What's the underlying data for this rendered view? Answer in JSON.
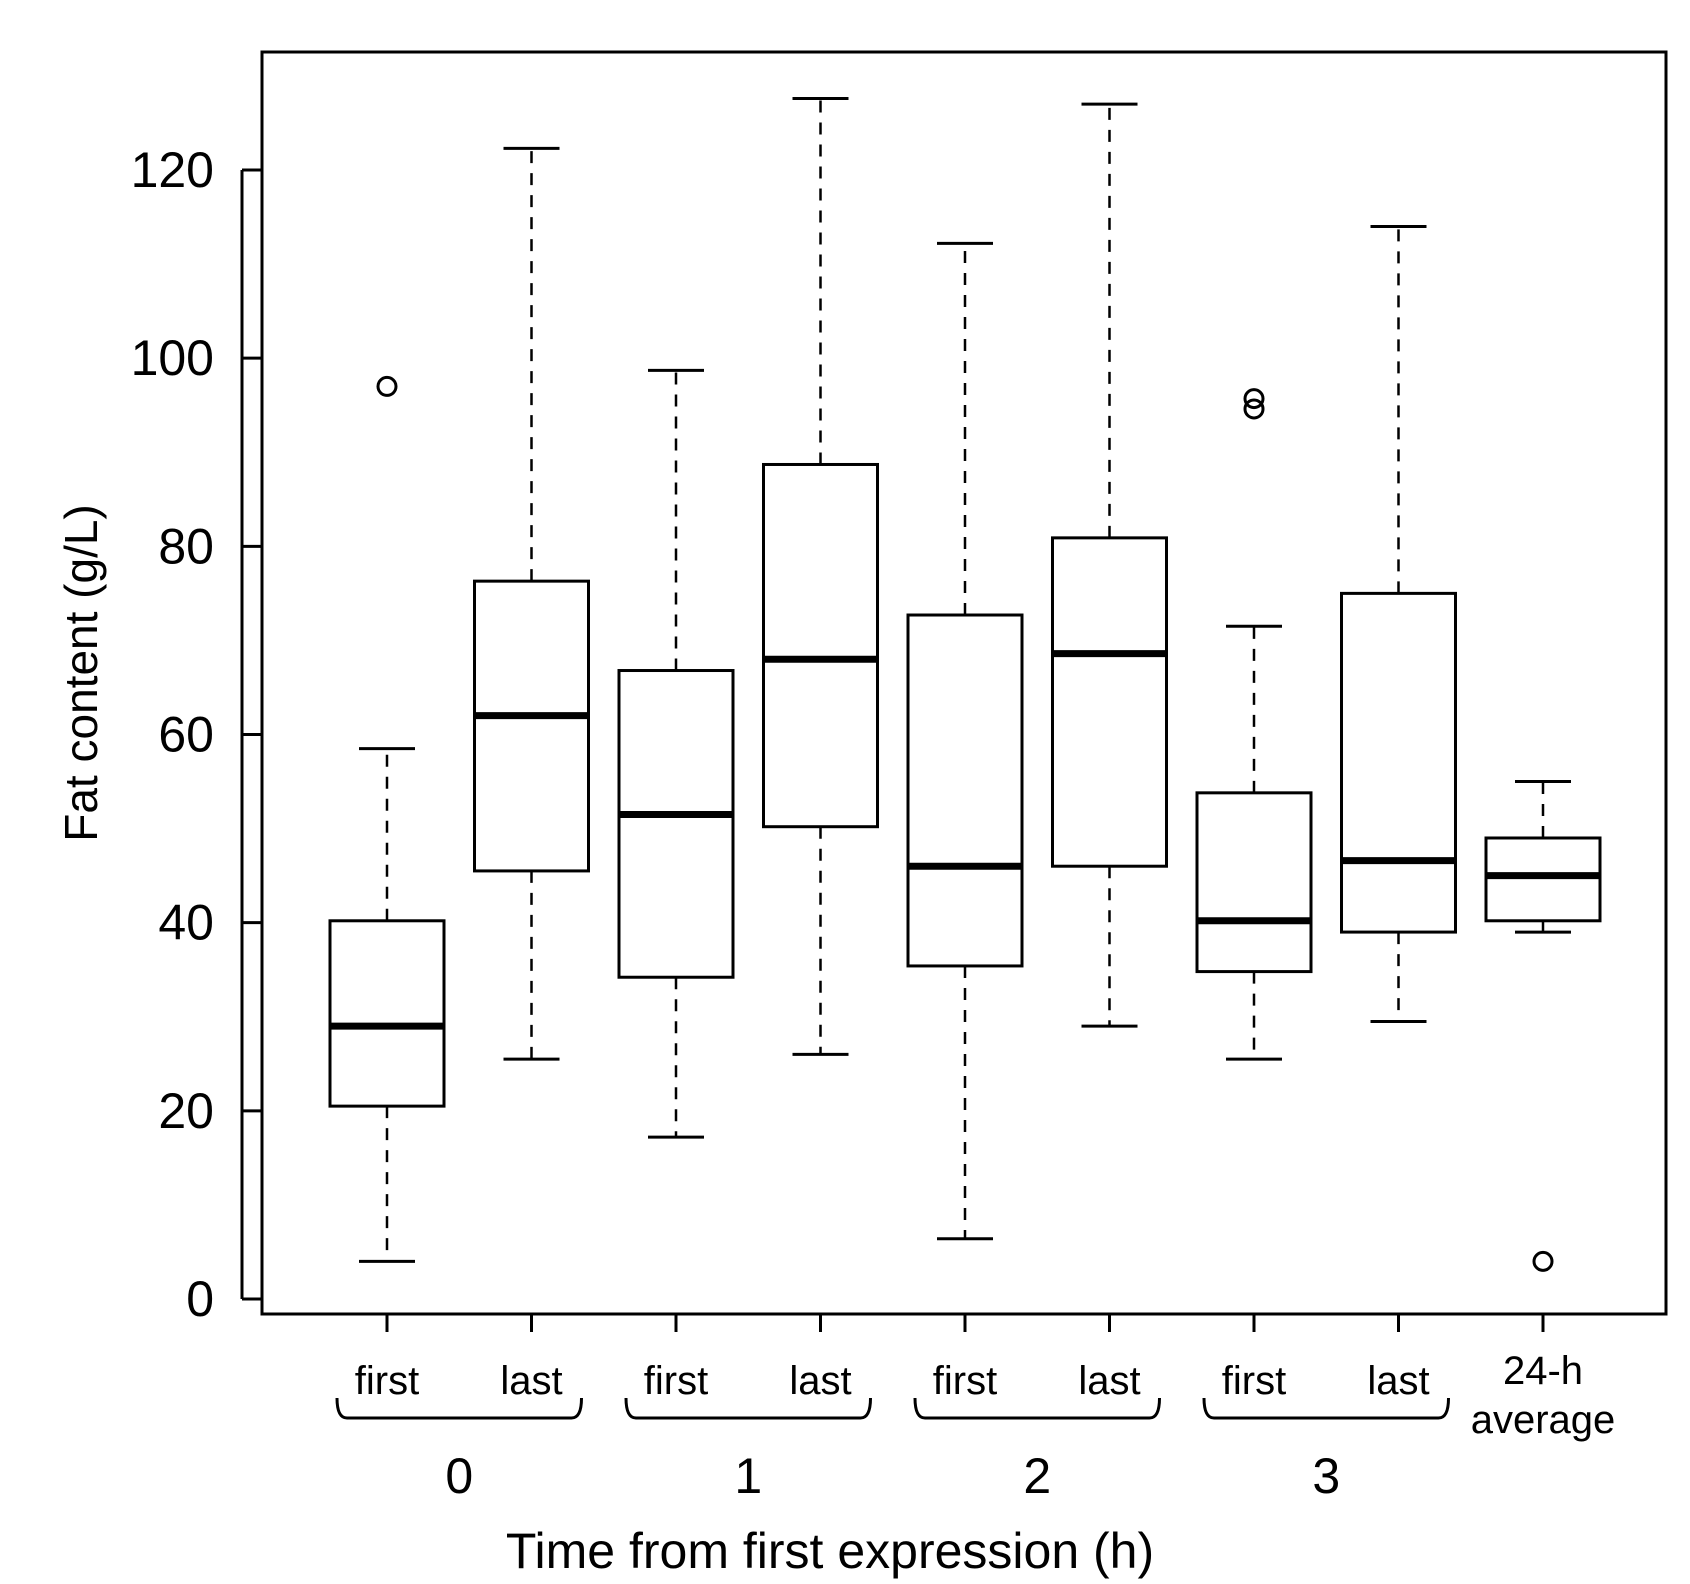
{
  "chart_data": {
    "type": "boxplot",
    "xlabel": "Time from first expression (h)",
    "ylabel": "Fat content (g/L)",
    "ylim": [
      0,
      130
    ],
    "yticks": [
      0,
      20,
      40,
      60,
      80,
      100,
      120
    ],
    "groups": [
      {
        "label": "0",
        "categories": [
          0,
          1
        ]
      },
      {
        "label": "1",
        "categories": [
          2,
          3
        ]
      },
      {
        "label": "2",
        "categories": [
          4,
          5
        ]
      },
      {
        "label": "3",
        "categories": [
          6,
          7
        ]
      }
    ],
    "boxes": [
      {
        "label": "first",
        "whisker_low": 4,
        "q1": 20.5,
        "median": 29,
        "q3": 40.2,
        "whisker_high": 58.5,
        "outliers": [
          97
        ]
      },
      {
        "label": "last",
        "whisker_low": 25.5,
        "q1": 45.5,
        "median": 62,
        "q3": 76.3,
        "whisker_high": 122.3,
        "outliers": []
      },
      {
        "label": "first",
        "whisker_low": 17.2,
        "q1": 34.2,
        "median": 51.5,
        "q3": 66.8,
        "whisker_high": 98.7,
        "outliers": []
      },
      {
        "label": "last",
        "whisker_low": 26,
        "q1": 50.2,
        "median": 68,
        "q3": 88.7,
        "whisker_high": 127.6,
        "outliers": []
      },
      {
        "label": "first",
        "whisker_low": 6.4,
        "q1": 35.4,
        "median": 46,
        "q3": 72.7,
        "whisker_high": 112.2,
        "outliers": []
      },
      {
        "label": "last",
        "whisker_low": 29,
        "q1": 46,
        "median": 68.6,
        "q3": 80.9,
        "whisker_high": 127,
        "outliers": []
      },
      {
        "label": "first",
        "whisker_low": 25.5,
        "q1": 34.8,
        "median": 40.2,
        "q3": 53.8,
        "whisker_high": 71.5,
        "outliers": [
          94.6,
          95.7
        ]
      },
      {
        "label": "last",
        "whisker_low": 29.5,
        "q1": 39,
        "median": 46.6,
        "q3": 75,
        "whisker_high": 114,
        "outliers": []
      },
      {
        "label_lines": [
          "24-h",
          "average"
        ],
        "whisker_low": 39,
        "q1": 40.2,
        "median": 45,
        "q3": 49,
        "whisker_high": 55,
        "outliers": [
          4
        ]
      }
    ]
  }
}
